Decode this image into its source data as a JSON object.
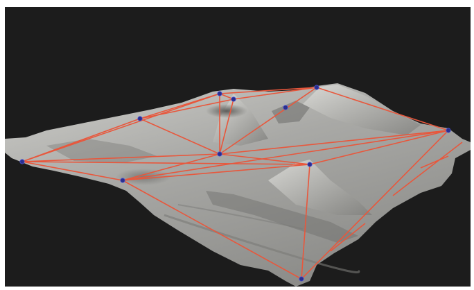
{
  "viewport": {
    "background_color": "#1c1c1c",
    "page_color": "#ffffff"
  },
  "terrain": {
    "surface_color": "#a9a9a6",
    "shade_color": "#6d6d6a"
  },
  "network": {
    "edge_color": "#e8573c",
    "node_color": "#2a2f8f",
    "node_count": 11,
    "edge_count": 27
  }
}
